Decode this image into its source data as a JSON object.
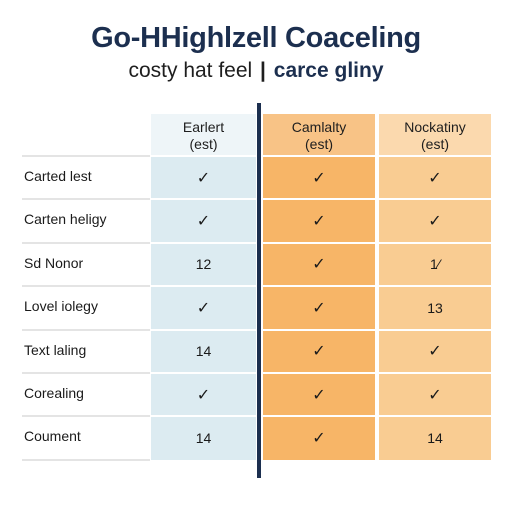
{
  "title": "Go-HHighlzell Coaceling",
  "subtitle": {
    "left": "costy hat feel",
    "separator": "|",
    "right": "carce gliny"
  },
  "columns": [
    {
      "line1": "Earlert",
      "line2": "(est)"
    },
    {
      "line1": "Camlalty",
      "line2": "(est)"
    },
    {
      "line1": "Nockatiny",
      "line2": "(est)"
    }
  ],
  "rows": [
    {
      "label": "Carted lest",
      "cells": [
        "✓",
        "✓",
        "✓"
      ]
    },
    {
      "label": "Carten heligy",
      "cells": [
        "✓",
        "✓",
        "✓"
      ]
    },
    {
      "label": "Sd Nonor",
      "cells": [
        "12",
        "✓",
        "1⁄"
      ]
    },
    {
      "label": "Lovel iolegy",
      "cells": [
        "✓",
        "✓",
        "13"
      ]
    },
    {
      "label": "Text laling",
      "cells": [
        "14",
        "✓",
        "✓"
      ]
    },
    {
      "label": "Corealing",
      "cells": [
        "✓",
        "✓",
        "✓"
      ]
    },
    {
      "label": "Coument",
      "cells": [
        "14",
        "✓",
        "14"
      ]
    }
  ],
  "colors": {
    "title": "#1c2f4f",
    "col_a": "#dcebf1",
    "col_b": "#f7b567",
    "col_c": "#f9cc92"
  }
}
